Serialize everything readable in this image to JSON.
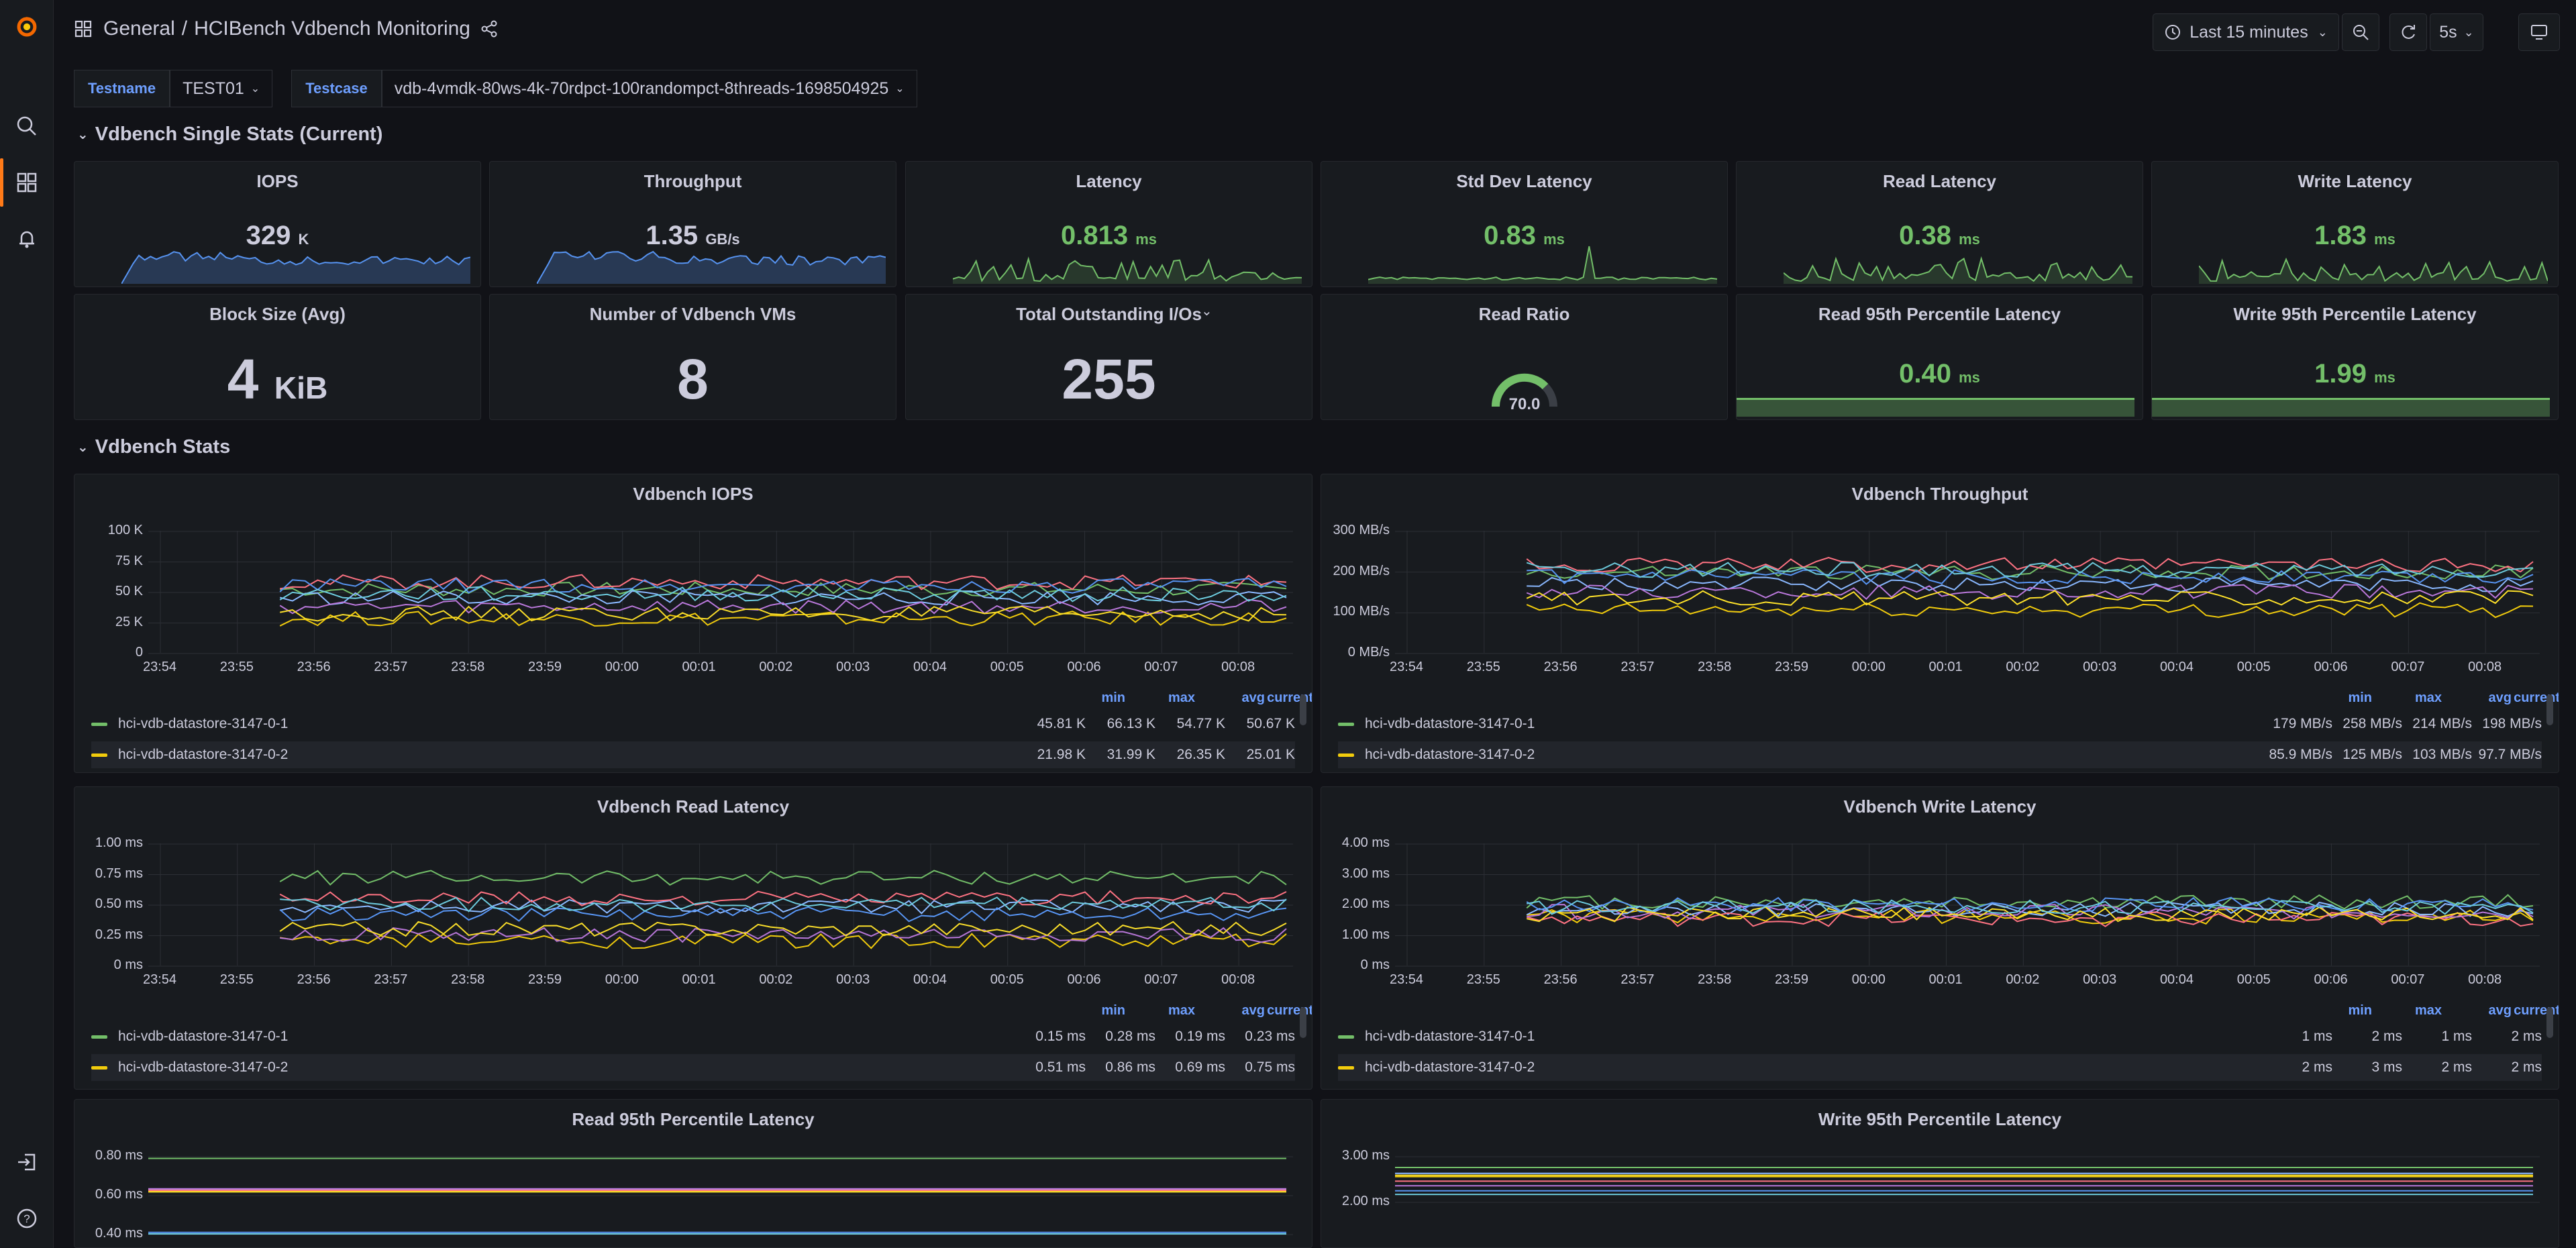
{
  "breadcrumb": {
    "folder": "General",
    "dashboard": "HCIBench Vdbench Monitoring"
  },
  "toolbar": {
    "time_range": "Last 15 minutes",
    "refresh_interval": "5s"
  },
  "variables": [
    {
      "label": "Testname",
      "value": "TEST01"
    },
    {
      "label": "Testcase",
      "value": "vdb-4vmdk-80ws-4k-70rdpct-100randompct-8threads-1698504925"
    }
  ],
  "rows": {
    "single_stats": "Vdbench Single Stats (Current)",
    "stats": "Vdbench Stats"
  },
  "stats_row1": [
    {
      "title": "IOPS",
      "value": "329",
      "unit": "K",
      "color": "#ccccdc"
    },
    {
      "title": "Throughput",
      "value": "1.35",
      "unit": "GB/s",
      "color": "#ccccdc"
    },
    {
      "title": "Latency",
      "value": "0.813",
      "unit": "ms",
      "color": "#73bf69"
    },
    {
      "title": "Std Dev Latency",
      "value": "0.83",
      "unit": "ms",
      "color": "#73bf69"
    },
    {
      "title": "Read Latency",
      "value": "0.38",
      "unit": "ms",
      "color": "#73bf69"
    },
    {
      "title": "Write Latency",
      "value": "1.83",
      "unit": "ms",
      "color": "#73bf69"
    }
  ],
  "stats_row2": [
    {
      "title": "Block Size (Avg)",
      "value": "4",
      "unit": "KiB"
    },
    {
      "title": "Number of Vdbench VMs",
      "value": "8",
      "unit": ""
    },
    {
      "title": "Total Outstanding I/Os",
      "value": "255",
      "unit": ""
    },
    {
      "title": "Read Ratio",
      "value": "70.0",
      "unit": ""
    },
    {
      "title": "Read 95th Percentile Latency",
      "value": "0.40",
      "unit": "ms"
    },
    {
      "title": "Write 95th Percentile Latency",
      "value": "1.99",
      "unit": "ms"
    }
  ],
  "legend_headers": [
    "min",
    "max",
    "avg",
    "current"
  ],
  "x_ticks": [
    "23:54",
    "23:55",
    "23:56",
    "23:57",
    "23:58",
    "23:59",
    "00:00",
    "00:01",
    "00:02",
    "00:03",
    "00:04",
    "00:05",
    "00:06",
    "00:07",
    "00:08"
  ],
  "series_colors": [
    "#73bf69",
    "#f2cc0c",
    "#8ab8ff",
    "#ff7383",
    "#b877d9",
    "#5794f2",
    "#fade2a",
    "#6ccadc"
  ],
  "chart_data": [
    {
      "type": "line",
      "title": "Vdbench IOPS",
      "y_ticks": [
        "100 K",
        "75 K",
        "50 K",
        "25 K",
        "0"
      ],
      "ylim": [
        0,
        100000
      ],
      "series": [
        {
          "name": "hci-vdb-datastore-3147-0-1",
          "min": "45.81 K",
          "max": "66.13 K",
          "avg": "54.77 K",
          "current": "50.67 K"
        },
        {
          "name": "hci-vdb-datastore-3147-0-2",
          "min": "21.98 K",
          "max": "31.99 K",
          "avg": "26.35 K",
          "current": "25.01 K"
        }
      ]
    },
    {
      "type": "line",
      "title": "Vdbench Throughput",
      "y_ticks": [
        "300 MB/s",
        "200 MB/s",
        "100 MB/s",
        "0 MB/s"
      ],
      "ylim": [
        0,
        300
      ],
      "series": [
        {
          "name": "hci-vdb-datastore-3147-0-1",
          "min": "179 MB/s",
          "max": "258 MB/s",
          "avg": "214 MB/s",
          "current": "198 MB/s"
        },
        {
          "name": "hci-vdb-datastore-3147-0-2",
          "min": "85.9 MB/s",
          "max": "125 MB/s",
          "avg": "103 MB/s",
          "current": "97.7 MB/s"
        }
      ]
    },
    {
      "type": "line",
      "title": "Vdbench Read Latency",
      "y_ticks": [
        "1.00 ms",
        "0.75 ms",
        "0.50 ms",
        "0.25 ms",
        "0 ms"
      ],
      "ylim": [
        0,
        1
      ],
      "series": [
        {
          "name": "hci-vdb-datastore-3147-0-1",
          "min": "0.15 ms",
          "max": "0.28 ms",
          "avg": "0.19 ms",
          "current": "0.23 ms"
        },
        {
          "name": "hci-vdb-datastore-3147-0-2",
          "min": "0.51 ms",
          "max": "0.86 ms",
          "avg": "0.69 ms",
          "current": "0.75 ms"
        }
      ]
    },
    {
      "type": "line",
      "title": "Vdbench Write Latency",
      "y_ticks": [
        "4.00 ms",
        "3.00 ms",
        "2.00 ms",
        "1.00 ms",
        "0 ms"
      ],
      "ylim": [
        0,
        4
      ],
      "series": [
        {
          "name": "hci-vdb-datastore-3147-0-1",
          "min": "1 ms",
          "max": "2 ms",
          "avg": "1 ms",
          "current": "2 ms"
        },
        {
          "name": "hci-vdb-datastore-3147-0-2",
          "min": "2 ms",
          "max": "3 ms",
          "avg": "2 ms",
          "current": "2 ms"
        }
      ]
    },
    {
      "type": "line",
      "title": "Read 95th Percentile Latency",
      "y_ticks": [
        "0.80 ms",
        "0.60 ms",
        "0.40 ms"
      ],
      "ylim": [
        0.4,
        0.8
      ]
    },
    {
      "type": "line",
      "title": "Write 95th Percentile Latency",
      "y_ticks": [
        "3.00 ms",
        "2.00 ms"
      ],
      "ylim": [
        2,
        3
      ]
    }
  ]
}
